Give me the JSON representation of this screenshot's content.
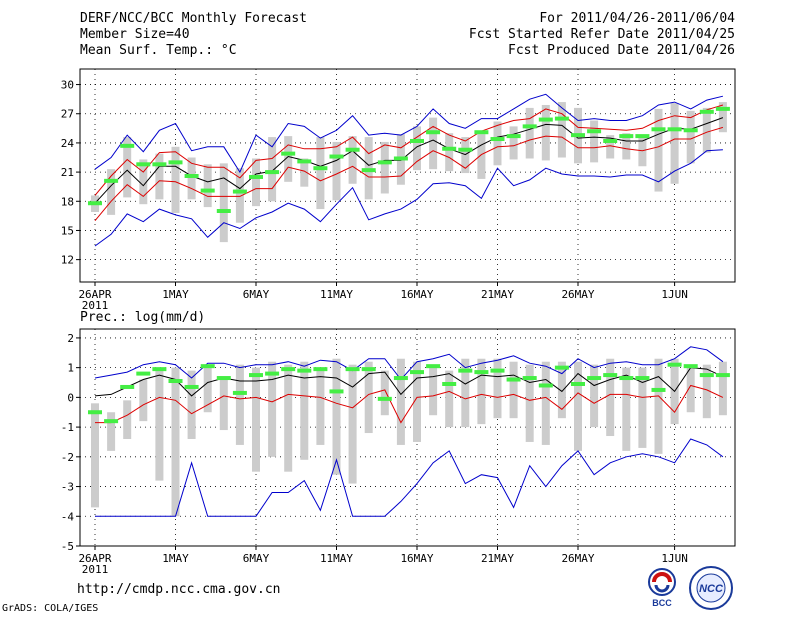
{
  "header": {
    "left": [
      "DERF/NCC/BCC Monthly Forecast",
      "Member Size=40",
      "Mean Surf. Temp.: °C"
    ],
    "right": [
      "For 2011/04/26-2011/06/04",
      "Fcst Started Refer Date 2011/04/25",
      "Fcst Produced Date 2011/04/26"
    ]
  },
  "footer": {
    "url": "http://cmdp.ncc.cma.gov.cn",
    "grads": "GrADS: COLA/IGES",
    "logo_bcc": "BCC",
    "logo_ncc": "NCC"
  },
  "chart_data": [
    {
      "type": "line",
      "title": "Mean Surf. Temp.: °C",
      "x_labels": [
        "26APR",
        "1MAY",
        "6MAY",
        "11MAY",
        "16MAY",
        "21MAY",
        "26MAY",
        "1JUN"
      ],
      "x_label_year": "2011",
      "yticks": [
        12,
        15,
        18,
        21,
        24,
        27,
        30
      ],
      "ylim": [
        9.7,
        31.6
      ],
      "grid": true,
      "series": [
        {
          "name": "ensemble-mean",
          "color": "#000000",
          "values": [
            17.8,
            19.6,
            21.2,
            19.6,
            21.6,
            21.6,
            20.6,
            20.0,
            20.4,
            19.3,
            20.8,
            21.1,
            22.6,
            22.2,
            21.6,
            22.2,
            23.2,
            21.7,
            22.2,
            22.2,
            23.6,
            24.3,
            23.4,
            22.8,
            23.8,
            24.6,
            24.9,
            25.4,
            25.9,
            25.8,
            24.5,
            24.6,
            24.5,
            24.2,
            24.2,
            24.9,
            25.5,
            25.4,
            26.0,
            26.6
          ]
        },
        {
          "name": "upper-red",
          "color": "#dd0000",
          "values": [
            18.6,
            20.6,
            22.3,
            21.0,
            23.0,
            23.1,
            21.9,
            21.5,
            21.5,
            20.4,
            22.2,
            22.4,
            23.8,
            23.4,
            23.4,
            23.6,
            24.6,
            22.9,
            23.8,
            23.5,
            24.6,
            25.7,
            24.8,
            24.2,
            25.2,
            25.8,
            26.3,
            26.5,
            27.5,
            27.0,
            25.6,
            25.5,
            25.4,
            25.3,
            25.5,
            26.3,
            26.8,
            26.6,
            27.4,
            27.9
          ]
        },
        {
          "name": "lower-red",
          "color": "#dd0000",
          "values": [
            16.0,
            18.0,
            19.7,
            18.5,
            20.1,
            20.0,
            19.3,
            18.5,
            18.5,
            18.5,
            19.3,
            19.3,
            21.5,
            21.1,
            20.1,
            20.8,
            21.6,
            20.5,
            20.5,
            20.6,
            22.1,
            23.2,
            22.5,
            21.4,
            22.8,
            23.6,
            23.7,
            24.3,
            24.7,
            24.6,
            23.5,
            23.5,
            23.7,
            23.4,
            23.2,
            23.6,
            24.4,
            24.4,
            25.1,
            25.6
          ]
        },
        {
          "name": "max-blue",
          "color": "#0000cc",
          "values": [
            21.3,
            22.5,
            24.8,
            23.1,
            25.3,
            26.0,
            23.2,
            23.6,
            23.6,
            21.0,
            24.8,
            23.6,
            26.0,
            25.7,
            24.5,
            25.3,
            26.8,
            24.8,
            25.0,
            24.8,
            25.7,
            27.5,
            26.0,
            25.5,
            26.5,
            26.5,
            27.5,
            28.5,
            29.0,
            27.6,
            26.3,
            26.5,
            26.3,
            26.3,
            26.8,
            27.9,
            28.2,
            27.5,
            28.4,
            28.8
          ]
        },
        {
          "name": "min-blue",
          "color": "#0000cc",
          "values": [
            13.4,
            14.6,
            16.7,
            15.9,
            17.2,
            16.6,
            16.2,
            14.3,
            15.8,
            15.2,
            16.3,
            16.9,
            17.8,
            17.2,
            15.9,
            17.7,
            19.4,
            16.1,
            16.7,
            17.2,
            18.2,
            19.8,
            19.9,
            19.6,
            18.3,
            21.4,
            19.6,
            20.2,
            21.4,
            20.8,
            20.6,
            20.6,
            20.5,
            20.7,
            20.7,
            20.0,
            21.1,
            21.9,
            23.2,
            23.3
          ]
        },
        {
          "name": "green-marker",
          "color": "#44ee44",
          "values": [
            17.8,
            20.1,
            23.7,
            21.8,
            21.8,
            22.0,
            20.6,
            19.1,
            17.0,
            19.0,
            20.5,
            21.0,
            22.9,
            22.1,
            21.4,
            22.6,
            23.3,
            21.2,
            22.0,
            22.4,
            24.2,
            25.1,
            23.4,
            23.3,
            25.1,
            24.4,
            24.7,
            25.7,
            26.4,
            26.5,
            24.8,
            25.2,
            24.2,
            24.7,
            24.7,
            25.4,
            25.4,
            25.3,
            27.2,
            27.5
          ]
        },
        {
          "name": "range-bar-top",
          "color": "#cccccc",
          "values": [
            18.6,
            21.3,
            24.6,
            22.3,
            22.9,
            23.6,
            22.5,
            21.8,
            21.9,
            21.4,
            22.4,
            24.6,
            24.7,
            22.4,
            24.6,
            24.1,
            24.7,
            24.6,
            24.1,
            24.9,
            25.7,
            26.6,
            25.0,
            24.6,
            24.9,
            26.2,
            25.7,
            27.6,
            27.9,
            28.2,
            27.6,
            26.3,
            24.8,
            25.0,
            24.8,
            27.5,
            28.1,
            27.3,
            27.6,
            28.2
          ]
        },
        {
          "name": "range-bar-bottom",
          "color": "#cccccc",
          "values": [
            16.9,
            16.6,
            18.4,
            17.7,
            18.2,
            16.8,
            18.2,
            17.4,
            13.8,
            15.8,
            17.5,
            18.0,
            20.0,
            19.5,
            17.2,
            18.1,
            19.8,
            18.2,
            18.8,
            19.7,
            21.2,
            21.3,
            21.1,
            20.9,
            20.3,
            21.7,
            22.3,
            22.4,
            22.2,
            22.5,
            21.9,
            22.0,
            22.4,
            22.3,
            21.6,
            19.0,
            19.8,
            21.9,
            23.0,
            25.1
          ]
        }
      ]
    },
    {
      "type": "line",
      "title": "Prec.: log(mm/d)",
      "x_labels": [
        "26APR",
        "1MAY",
        "6MAY",
        "11MAY",
        "16MAY",
        "21MAY",
        "26MAY",
        "1JUN"
      ],
      "x_label_year": "2011",
      "yticks": [
        -5,
        -4,
        -3,
        -2,
        -1,
        0,
        1,
        2
      ],
      "ylim": [
        -5,
        2.3
      ],
      "grid": true,
      "series": [
        {
          "name": "ensemble-mean",
          "color": "#000000",
          "values": [
            0.05,
            0.1,
            0.35,
            0.6,
            0.75,
            0.6,
            0.05,
            0.5,
            0.65,
            0.55,
            0.55,
            0.6,
            0.75,
            0.65,
            0.7,
            0.65,
            0.35,
            0.8,
            0.85,
            0.1,
            0.65,
            0.7,
            0.8,
            0.45,
            0.75,
            0.7,
            0.75,
            0.5,
            0.6,
            0.2,
            0.8,
            0.4,
            0.6,
            0.75,
            0.5,
            0.7,
            0.2,
            1.0,
            0.95,
            0.7
          ]
        },
        {
          "name": "red-lower",
          "color": "#dd0000",
          "values": [
            -0.85,
            -0.85,
            -0.6,
            -0.25,
            0.0,
            -0.1,
            -0.55,
            -0.25,
            0.05,
            -0.05,
            0.0,
            -0.15,
            0.1,
            0.05,
            0.0,
            -0.2,
            -0.35,
            0.1,
            0.25,
            -0.85,
            0.0,
            0.05,
            0.2,
            -0.05,
            0.1,
            0.0,
            0.1,
            -0.1,
            0.0,
            -0.4,
            0.15,
            -0.2,
            0.1,
            0.1,
            0.0,
            0.05,
            -0.5,
            0.4,
            0.25,
            0.0
          ]
        },
        {
          "name": "max-blue",
          "color": "#0000cc",
          "values": [
            0.65,
            0.75,
            0.85,
            1.1,
            1.2,
            1.1,
            0.65,
            1.15,
            1.15,
            1.0,
            1.1,
            1.1,
            1.2,
            1.05,
            1.25,
            1.2,
            0.9,
            1.3,
            1.3,
            0.6,
            1.2,
            1.3,
            1.45,
            1.0,
            1.15,
            1.25,
            1.4,
            1.15,
            1.05,
            0.8,
            1.3,
            1.0,
            1.15,
            1.2,
            1.1,
            1.1,
            1.3,
            1.7,
            1.6,
            1.2
          ]
        },
        {
          "name": "min-blue",
          "color": "#0000cc",
          "values": [
            -4.0,
            -4.0,
            -4.0,
            -4.0,
            -4.0,
            -4.0,
            -2.2,
            -4.0,
            -4.0,
            -4.0,
            -4.0,
            -3.2,
            -3.2,
            -2.8,
            -3.8,
            -2.1,
            -4.0,
            -4.0,
            -4.0,
            -3.5,
            -2.9,
            -2.2,
            -1.8,
            -2.9,
            -2.6,
            -2.7,
            -3.7,
            -2.3,
            -3.0,
            -2.3,
            -1.8,
            -2.6,
            -2.2,
            -2.0,
            -1.9,
            -2.0,
            -2.2,
            -1.4,
            -1.6,
            -2.0
          ]
        },
        {
          "name": "green-marker",
          "color": "#44ee44",
          "values": [
            -0.5,
            -0.8,
            0.35,
            0.8,
            0.95,
            0.55,
            0.35,
            1.05,
            0.65,
            0.15,
            0.75,
            0.8,
            0.95,
            0.9,
            0.95,
            0.2,
            0.95,
            0.95,
            -0.05,
            0.65,
            0.85,
            1.05,
            0.45,
            0.9,
            0.85,
            0.9,
            0.6,
            0.65,
            0.4,
            1.0,
            0.45,
            0.65,
            0.75,
            0.65,
            0.65,
            0.25,
            1.1,
            1.05,
            0.75,
            0.75
          ]
        },
        {
          "name": "range-bar-top",
          "color": "#cccccc",
          "values": [
            -0.2,
            -0.5,
            -0.1,
            0.6,
            1.0,
            1.0,
            0.9,
            1.1,
            0.7,
            1.1,
            1.0,
            1.2,
            1.1,
            1.2,
            1.0,
            1.3,
            1.1,
            1.2,
            0.9,
            1.3,
            1.2,
            1.0,
            0.9,
            1.3,
            1.3,
            1.3,
            1.2,
            1.1,
            1.2,
            1.2,
            1.2,
            1.1,
            1.3,
            1.0,
            1.0,
            1.3,
            1.3,
            1.1,
            1.1,
            1.2
          ]
        },
        {
          "name": "range-bar-bottom",
          "color": "#cccccc",
          "values": [
            -3.7,
            -1.8,
            -1.4,
            -0.8,
            -2.8,
            -4.0,
            -1.4,
            -0.5,
            -1.1,
            -1.6,
            -2.5,
            -2.0,
            -2.5,
            -2.1,
            -1.6,
            -2.6,
            -2.9,
            -1.2,
            -0.6,
            -1.6,
            -1.5,
            -0.6,
            -1.0,
            -1.0,
            -0.9,
            -0.7,
            -0.7,
            -1.5,
            -1.6,
            -0.7,
            -1.8,
            -1.0,
            -1.3,
            -1.8,
            -1.7,
            -1.9,
            -0.9,
            -0.5,
            -0.7,
            -0.6
          ]
        }
      ]
    }
  ]
}
